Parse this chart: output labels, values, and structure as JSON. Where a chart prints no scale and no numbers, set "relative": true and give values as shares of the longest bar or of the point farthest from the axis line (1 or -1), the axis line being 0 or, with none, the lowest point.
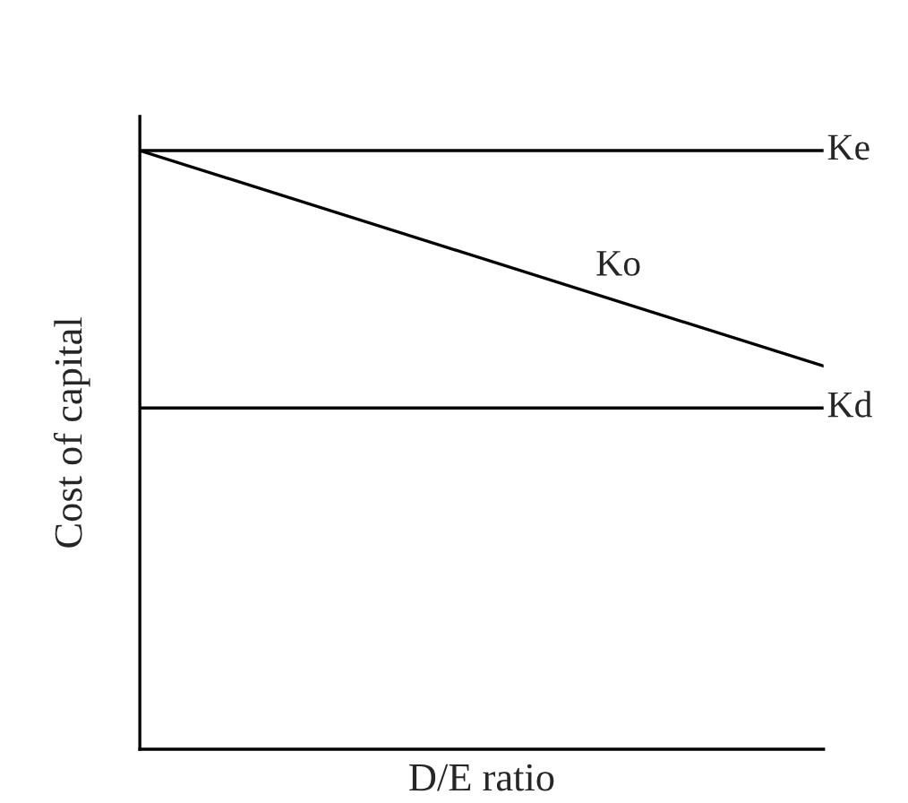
{
  "chart_data": {
    "type": "line",
    "relative": true,
    "xlabel": "D/E ratio",
    "ylabel": "Cost of capital",
    "categories": [
      null,
      null
    ],
    "series": [
      {
        "name": "Ke",
        "color": "#000000",
        "values": [
          1,
          1
        ]
      },
      {
        "name": "Ko",
        "color": "#000000",
        "values": [
          1,
          0.64
        ]
      },
      {
        "name": "Kd",
        "color": "#000000",
        "values": [
          0.57,
          0.57
        ]
      }
    ],
    "grid": false,
    "legend": false,
    "marker": "none",
    "line_style": "solid"
  }
}
